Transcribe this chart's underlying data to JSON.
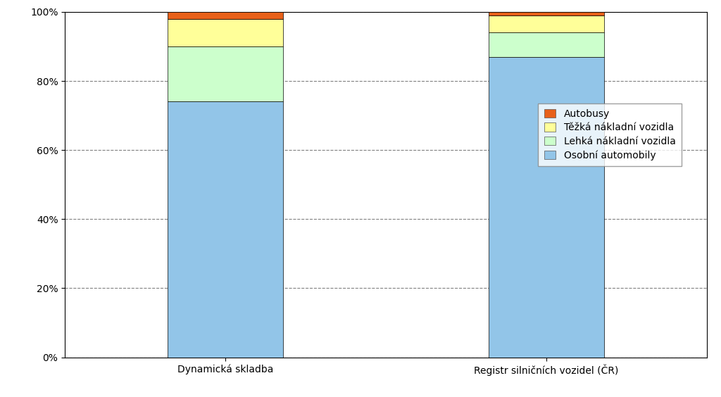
{
  "categories": [
    "Dynamická skladba",
    "Registr silničních vozidel (ČR)"
  ],
  "series": [
    {
      "label": "Osobní automobily",
      "values": [
        74.0,
        87.0
      ],
      "color": "#92C5E8"
    },
    {
      "label": "Lehká nákladní vozidla",
      "values": [
        16.0,
        7.0
      ],
      "color": "#CCFFCC"
    },
    {
      "label": "Těžká nákladní vozidla",
      "values": [
        8.0,
        5.0
      ],
      "color": "#FFFF99"
    },
    {
      "label": "Autobusy",
      "values": [
        2.0,
        1.0
      ],
      "color": "#E8611A"
    }
  ],
  "ylim": [
    0,
    1.0
  ],
  "yticks": [
    0.0,
    0.2,
    0.4,
    0.6,
    0.8,
    1.0
  ],
  "ytick_labels": [
    "0%",
    "20%",
    "40%",
    "60%",
    "80%",
    "100%"
  ],
  "bar_width": 0.18,
  "x_positions": [
    0.25,
    0.75
  ],
  "xlim": [
    0.0,
    1.0
  ],
  "background_color": "#ffffff",
  "grid_color": "#808080",
  "bar_edge_color": "#000000",
  "bar_edge_linewidth": 0.5,
  "font_size": 10,
  "tick_font_size": 10
}
